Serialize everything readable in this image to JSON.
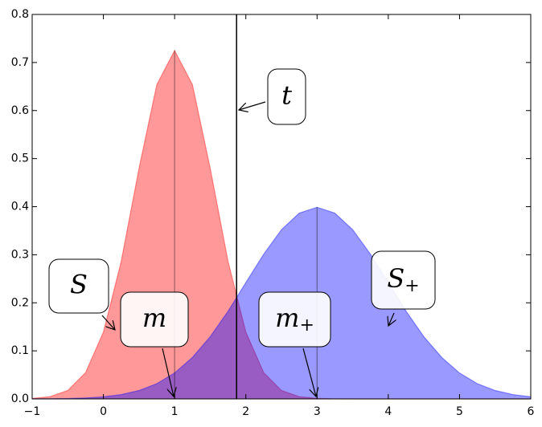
{
  "chart_data": {
    "type": "area",
    "x": [
      -1,
      -0.75,
      -0.5,
      -0.25,
      0,
      0.25,
      0.5,
      0.75,
      1,
      1.25,
      1.5,
      1.75,
      2,
      2.25,
      2.5,
      2.75,
      3,
      3.25,
      3.5,
      3.75,
      4,
      4.25,
      4.5,
      4.75,
      5,
      5.25,
      5.5,
      5.75,
      6
    ],
    "series": [
      {
        "color": "#ff0000",
        "mean": 1,
        "values": [
          0.001,
          0.0046,
          0.0176,
          0.0548,
          0.139,
          0.286,
          0.48,
          0.654,
          0.725,
          0.654,
          0.48,
          0.286,
          0.139,
          0.0548,
          0.0176,
          0.0046,
          0.001,
          0.0002,
          0,
          0,
          0,
          0,
          0,
          0,
          0,
          0,
          0,
          0,
          0
        ]
      },
      {
        "color": "#0000ff",
        "mean": 3,
        "values": [
          0.0001,
          0.0004,
          0.0009,
          0.002,
          0.0044,
          0.0091,
          0.0175,
          0.0317,
          0.054,
          0.0863,
          0.1295,
          0.1826,
          0.242,
          0.3011,
          0.3521,
          0.3867,
          0.3989,
          0.3867,
          0.3521,
          0.3011,
          0.242,
          0.1826,
          0.1295,
          0.0863,
          0.054,
          0.0317,
          0.0175,
          0.0091,
          0.0044
        ]
      }
    ],
    "threshold": 1.87,
    "annotations": [
      {
        "text": "t"
      },
      {
        "text": "S"
      },
      {
        "text": "m"
      },
      {
        "text": "m",
        "sub": "+"
      },
      {
        "text": "S",
        "sub": "+"
      }
    ],
    "xlim": [
      -1,
      6
    ],
    "xticks": [
      {
        "value": -1,
        "label": "−1"
      },
      0,
      1,
      2,
      3,
      4,
      5,
      6
    ],
    "ylim": [
      0,
      0.8
    ],
    "yticks": [
      {
        "value": 0,
        "label": "0.0"
      },
      0.1,
      0.2,
      0.3,
      0.4,
      0.5,
      0.6,
      0.7,
      0.8
    ]
  }
}
